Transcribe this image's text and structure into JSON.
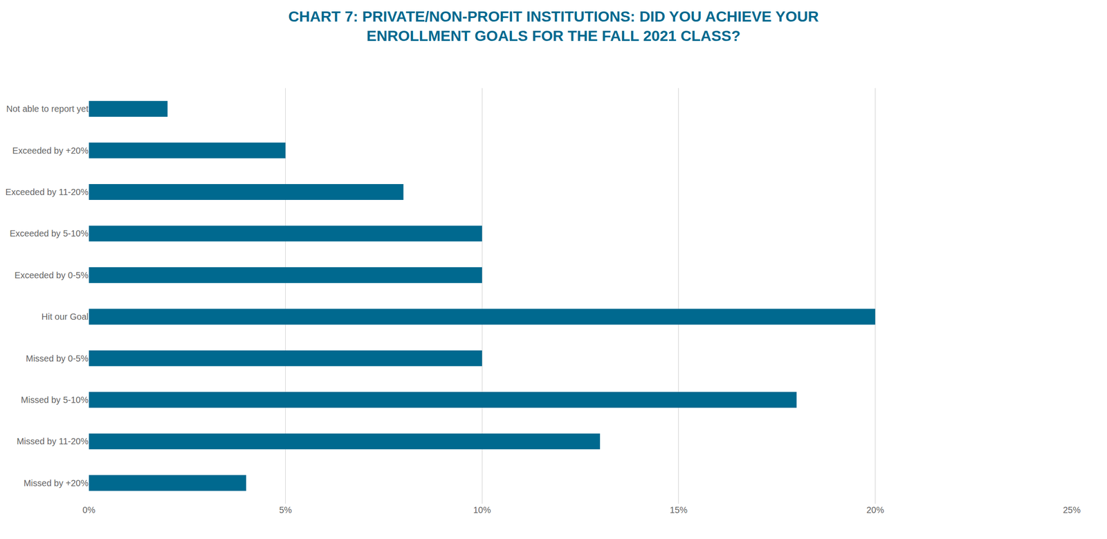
{
  "chart_data": {
    "type": "bar",
    "orientation": "horizontal",
    "title": "CHART 7: PRIVATE/NON-PROFIT INSTITUTIONS: DID YOU ACHIEVE YOUR\nENROLLMENT GOALS FOR THE FALL 2021 CLASS?",
    "categories": [
      "Not able to report yet",
      "Exceeded by +20%",
      "Exceeded by 11-20%",
      "Exceeded by 5-10%",
      "Exceeded by 0-5%",
      "Hit our Goal",
      "Missed by 0-5%",
      "Missed by 5-10%",
      "Missed by 11-20%",
      "Missed by +20%"
    ],
    "values": [
      2,
      5,
      8,
      10,
      10,
      20,
      10,
      18,
      13,
      4
    ],
    "color": "#00698f",
    "xlim": [
      0,
      25
    ],
    "xticks": [
      {
        "value": 0,
        "label": "0%"
      },
      {
        "value": 5,
        "label": "5%"
      },
      {
        "value": 10,
        "label": "10%"
      },
      {
        "value": 15,
        "label": "15%"
      },
      {
        "value": 20,
        "label": "20%"
      },
      {
        "value": 25,
        "label": "25%"
      }
    ],
    "grid": true
  }
}
